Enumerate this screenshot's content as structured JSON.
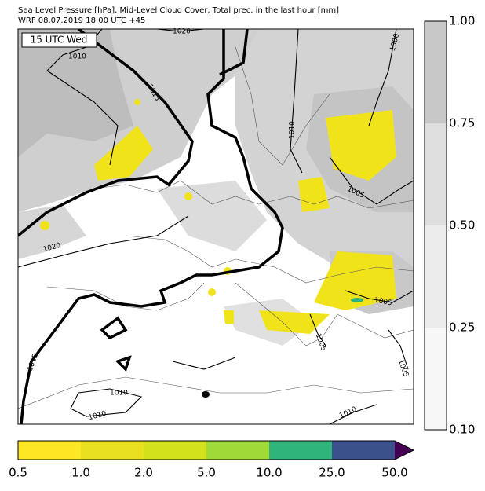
{
  "title_lines": [
    "Sea Level Pressure [hPa], Mid-Level Cloud Cover, Total prec. in the last hour [mm]",
    "WRF 08.07.2019 18:00 UTC +45"
  ],
  "time_label": "15 UTC Wed",
  "contour_labels": [
    "1020",
    "1010",
    "1015",
    "1000",
    "1010",
    "1005",
    "1020",
    "1005",
    "1005",
    "1005",
    "1015",
    "1010",
    "1010",
    "1010"
  ],
  "cloud_colorbar": {
    "tick_labels": [
      "1.00",
      "0.75",
      "0.50",
      "0.25",
      "0.10"
    ]
  },
  "precip_colorbar": {
    "tick_labels": [
      "0.5",
      "1.0",
      "2.0",
      "5.0",
      "10.0",
      "25.0",
      "50.0"
    ]
  }
}
